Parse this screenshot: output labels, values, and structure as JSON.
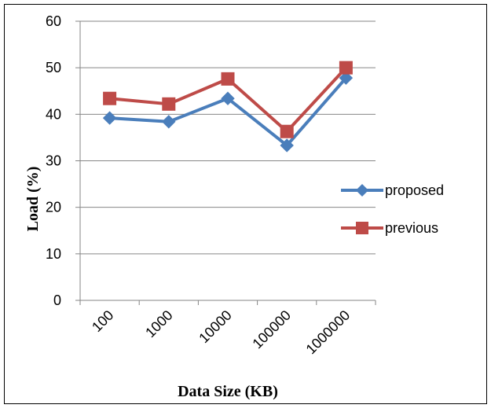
{
  "chart_data": {
    "type": "line",
    "categories": [
      "100",
      "1000",
      "10000",
      "100000",
      "1000000"
    ],
    "series": [
      {
        "name": "proposed",
        "values": [
          39.2,
          38.4,
          43.4,
          33.3,
          47.8
        ],
        "color": "#4A7EBB",
        "marker": "diamond"
      },
      {
        "name": "previous",
        "values": [
          43.4,
          42.2,
          47.6,
          36.3,
          50.0
        ],
        "color": "#BE4B48",
        "marker": "square"
      }
    ],
    "title": "",
    "xlabel": "Data Size (KB)",
    "ylabel": "Load (%)",
    "ylim": [
      0,
      60
    ],
    "yticks": [
      "0",
      "10",
      "20",
      "30",
      "40",
      "50",
      "60"
    ],
    "grid": true,
    "legend": "right"
  }
}
